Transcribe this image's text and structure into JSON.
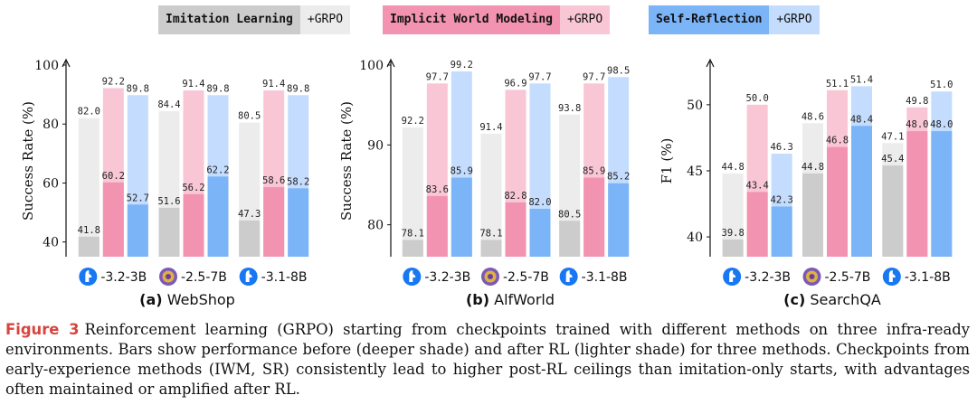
{
  "legend": [
    {
      "base": "Imitation Learning",
      "rl": "+GRPO",
      "base_color": "#cccccc",
      "rl_color": "#ececec"
    },
    {
      "base": "Implicit World Modeling",
      "rl": "+GRPO",
      "base_color": "#f393b2",
      "rl_color": "#f9c6d6"
    },
    {
      "base": "Self-Reflection",
      "rl": "+GRPO",
      "base_color": "#7cb4f8",
      "rl_color": "#c4dcfd"
    }
  ],
  "colors": {
    "il_base": "#cccccc",
    "il_rl": "#ececec",
    "iwm_base": "#f393b2",
    "iwm_rl": "#f9c6d6",
    "sr_base": "#7cb4f8",
    "sr_rl": "#c4dcfd",
    "llama_icon": "#1877f2",
    "qwen_icon": "#7a5ab8"
  },
  "chart_data": [
    {
      "type": "bar",
      "subtitle_tag": "(a)",
      "subtitle": "WebShop",
      "ylabel": "Success Rate (%)",
      "ylim": [
        35,
        100
      ],
      "yticks": [
        40,
        60,
        80,
        100
      ],
      "categories": [
        {
          "label": "-3.2-3B",
          "icon": "llama-icon"
        },
        {
          "label": "-2.5-7B",
          "icon": "qwen-icon"
        },
        {
          "label": "-3.1-8B",
          "icon": "llama-icon"
        }
      ],
      "series": [
        {
          "name": "Imitation Learning",
          "key": "il",
          "before": [
            41.8,
            51.6,
            47.3
          ],
          "after": [
            82.0,
            84.4,
            80.5
          ]
        },
        {
          "name": "Implicit World Modeling",
          "key": "iwm",
          "before": [
            60.2,
            56.2,
            58.6
          ],
          "after": [
            92.2,
            91.4,
            91.4
          ]
        },
        {
          "name": "Self-Reflection",
          "key": "sr",
          "before": [
            52.7,
            62.2,
            58.2
          ],
          "after": [
            89.8,
            89.8,
            89.8
          ]
        }
      ]
    },
    {
      "type": "bar",
      "subtitle_tag": "(b)",
      "subtitle": "AlfWorld",
      "ylabel": "Success Rate (%)",
      "ylim": [
        76,
        100
      ],
      "yticks": [
        80,
        90,
        100
      ],
      "categories": [
        {
          "label": "-3.2-3B",
          "icon": "llama-icon"
        },
        {
          "label": "-2.5-7B",
          "icon": "qwen-icon"
        },
        {
          "label": "-3.1-8B",
          "icon": "llama-icon"
        }
      ],
      "series": [
        {
          "name": "Imitation Learning",
          "key": "il",
          "before": [
            78.1,
            78.1,
            80.5
          ],
          "after": [
            92.2,
            91.4,
            93.8
          ]
        },
        {
          "name": "Implicit World Modeling",
          "key": "iwm",
          "before": [
            83.6,
            82.8,
            85.9
          ],
          "after": [
            97.7,
            96.9,
            97.7
          ]
        },
        {
          "name": "Self-Reflection",
          "key": "sr",
          "before": [
            85.9,
            82.0,
            85.2
          ],
          "after": [
            99.2,
            97.7,
            98.5
          ]
        }
      ]
    },
    {
      "type": "bar",
      "subtitle_tag": "(c)",
      "subtitle": "SearchQA",
      "ylabel": "F1 (%)",
      "ylim": [
        38.5,
        53
      ],
      "yticks": [
        40,
        45,
        50
      ],
      "categories": [
        {
          "label": "-3.2-3B",
          "icon": "llama-icon"
        },
        {
          "label": "-2.5-7B",
          "icon": "qwen-icon"
        },
        {
          "label": "-3.1-8B",
          "icon": "llama-icon"
        }
      ],
      "series": [
        {
          "name": "Imitation Learning",
          "key": "il",
          "before": [
            39.8,
            44.8,
            45.4
          ],
          "after": [
            44.8,
            48.6,
            47.1
          ]
        },
        {
          "name": "Implicit World Modeling",
          "key": "iwm",
          "before": [
            43.4,
            46.8,
            48.0
          ],
          "after": [
            50.0,
            51.1,
            49.8
          ]
        },
        {
          "name": "Self-Reflection",
          "key": "sr",
          "before": [
            42.3,
            48.4,
            48.0
          ],
          "after": [
            46.3,
            51.4,
            51.0
          ]
        }
      ]
    }
  ],
  "caption": {
    "figure_label": "Figure 3",
    "text": "Reinforcement learning (GRPO) starting from checkpoints trained with different methods on three infra-ready environments. Bars show performance before (deeper shade) and after RL (lighter shade) for three methods. Checkpoints from early-experience methods (IWM, SR) consistently lead to higher post-RL ceilings than imitation-only starts, with advantages often maintained or amplified after RL."
  }
}
